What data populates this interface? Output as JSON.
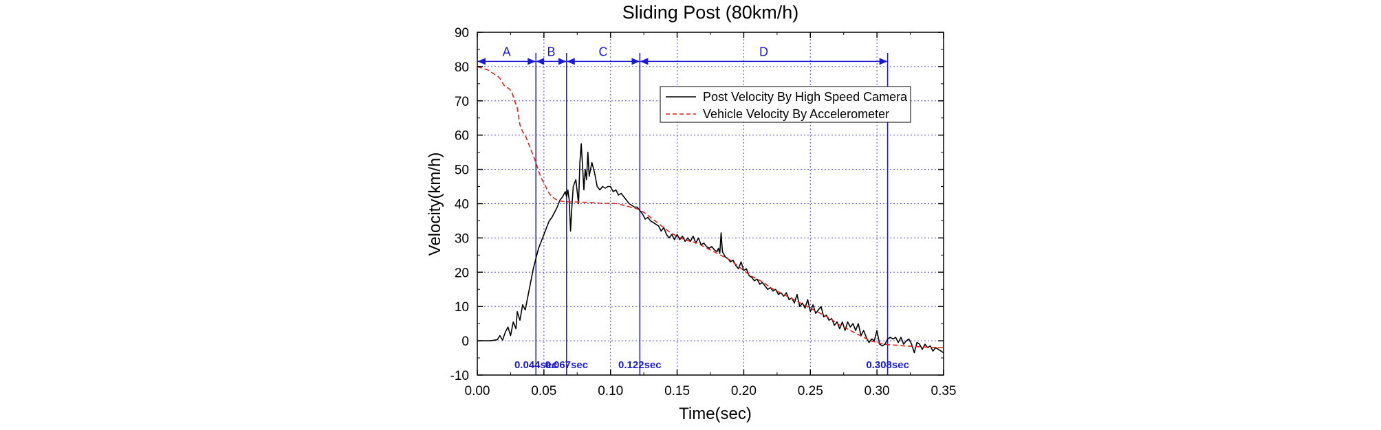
{
  "chart_data": {
    "type": "line",
    "title": "Sliding Post (80km/h)",
    "xlabel": "Time(sec)",
    "ylabel": "Velocity(km/h)",
    "xlim": [
      0,
      0.35
    ],
    "ylim": [
      -10,
      90
    ],
    "x_ticks": [
      "0.00",
      "0.05",
      "0.10",
      "0.15",
      "0.20",
      "0.25",
      "0.30",
      "0.35"
    ],
    "y_ticks": [
      "-10",
      "0",
      "10",
      "20",
      "30",
      "40",
      "50",
      "60",
      "70",
      "80",
      "90"
    ],
    "grid": true,
    "legend_position": "top-right",
    "series": [
      {
        "name": "Post Velocity By High Speed Camera",
        "color": "#000000",
        "style": "solid",
        "points": [
          [
            0.0,
            0
          ],
          [
            0.005,
            0
          ],
          [
            0.01,
            0
          ],
          [
            0.015,
            0.3
          ],
          [
            0.017,
            1.5
          ],
          [
            0.019,
            0.2
          ],
          [
            0.021,
            2.5
          ],
          [
            0.023,
            4
          ],
          [
            0.025,
            1.5
          ],
          [
            0.027,
            5.5
          ],
          [
            0.029,
            3.5
          ],
          [
            0.03,
            8.5
          ],
          [
            0.032,
            6
          ],
          [
            0.034,
            10.5
          ],
          [
            0.036,
            9
          ],
          [
            0.038,
            13
          ],
          [
            0.04,
            17
          ],
          [
            0.042,
            21
          ],
          [
            0.044,
            24
          ],
          [
            0.046,
            27
          ],
          [
            0.048,
            29
          ],
          [
            0.05,
            31
          ],
          [
            0.052,
            33
          ],
          [
            0.054,
            35
          ],
          [
            0.056,
            36
          ],
          [
            0.058,
            37.5
          ],
          [
            0.06,
            39
          ],
          [
            0.062,
            41
          ],
          [
            0.064,
            42
          ],
          [
            0.066,
            43.5
          ],
          [
            0.067,
            42
          ],
          [
            0.068,
            44
          ],
          [
            0.069,
            41
          ],
          [
            0.07,
            32
          ],
          [
            0.071,
            39
          ],
          [
            0.072,
            45
          ],
          [
            0.074,
            47
          ],
          [
            0.076,
            40
          ],
          [
            0.077,
            52
          ],
          [
            0.078,
            57.5
          ],
          [
            0.079,
            51
          ],
          [
            0.08,
            44
          ],
          [
            0.081,
            50
          ],
          [
            0.082,
            47
          ],
          [
            0.083,
            55
          ],
          [
            0.084,
            48
          ],
          [
            0.086,
            52
          ],
          [
            0.088,
            49
          ],
          [
            0.09,
            45
          ],
          [
            0.092,
            44
          ],
          [
            0.094,
            45
          ],
          [
            0.096,
            44.5
          ],
          [
            0.098,
            45
          ],
          [
            0.1,
            45
          ],
          [
            0.102,
            43.5
          ],
          [
            0.104,
            44
          ],
          [
            0.106,
            42.5
          ],
          [
            0.108,
            43
          ],
          [
            0.11,
            42
          ],
          [
            0.112,
            41
          ],
          [
            0.114,
            40
          ],
          [
            0.116,
            39.5
          ],
          [
            0.118,
            39
          ],
          [
            0.12,
            39
          ],
          [
            0.122,
            38
          ],
          [
            0.124,
            37
          ],
          [
            0.126,
            35.5
          ],
          [
            0.128,
            36
          ],
          [
            0.13,
            35
          ],
          [
            0.132,
            34.5
          ],
          [
            0.134,
            34
          ],
          [
            0.136,
            33.5
          ],
          [
            0.138,
            32
          ],
          [
            0.14,
            33
          ],
          [
            0.142,
            31
          ],
          [
            0.144,
            30
          ],
          [
            0.146,
            31
          ],
          [
            0.148,
            29.5
          ],
          [
            0.15,
            31
          ],
          [
            0.152,
            29.5
          ],
          [
            0.154,
            30.5
          ],
          [
            0.156,
            29
          ],
          [
            0.158,
            30
          ],
          [
            0.16,
            29
          ],
          [
            0.162,
            30.5
          ],
          [
            0.164,
            28.5
          ],
          [
            0.166,
            30
          ],
          [
            0.168,
            28
          ],
          [
            0.17,
            28.5
          ],
          [
            0.172,
            27.5
          ],
          [
            0.174,
            27
          ],
          [
            0.176,
            27.5
          ],
          [
            0.178,
            26.5
          ],
          [
            0.18,
            26
          ],
          [
            0.181,
            27
          ],
          [
            0.182,
            25.5
          ],
          [
            0.183,
            31.5
          ],
          [
            0.184,
            26
          ],
          [
            0.186,
            24.5
          ],
          [
            0.188,
            24
          ],
          [
            0.19,
            23
          ],
          [
            0.192,
            23.5
          ],
          [
            0.194,
            22
          ],
          [
            0.196,
            21
          ],
          [
            0.198,
            23
          ],
          [
            0.2,
            20.5
          ],
          [
            0.202,
            21
          ],
          [
            0.204,
            19
          ],
          [
            0.206,
            18.5
          ],
          [
            0.208,
            17.5
          ],
          [
            0.21,
            18
          ],
          [
            0.212,
            16.5
          ],
          [
            0.214,
            17
          ],
          [
            0.216,
            16
          ],
          [
            0.218,
            15
          ],
          [
            0.22,
            15.5
          ],
          [
            0.222,
            14.5
          ],
          [
            0.224,
            15
          ],
          [
            0.226,
            13.5
          ],
          [
            0.228,
            14
          ],
          [
            0.23,
            13
          ],
          [
            0.232,
            14
          ],
          [
            0.234,
            12
          ],
          [
            0.236,
            12.5
          ],
          [
            0.238,
            11
          ],
          [
            0.24,
            13.5
          ],
          [
            0.242,
            10
          ],
          [
            0.244,
            11
          ],
          [
            0.246,
            9.5
          ],
          [
            0.248,
            12
          ],
          [
            0.25,
            8.5
          ],
          [
            0.252,
            10.5
          ],
          [
            0.254,
            8
          ],
          [
            0.256,
            9
          ],
          [
            0.258,
            10
          ],
          [
            0.26,
            7
          ],
          [
            0.262,
            7.5
          ],
          [
            0.264,
            6
          ],
          [
            0.266,
            6.5
          ],
          [
            0.268,
            4.5
          ],
          [
            0.27,
            5.5
          ],
          [
            0.272,
            3.5
          ],
          [
            0.274,
            5.5
          ],
          [
            0.276,
            3
          ],
          [
            0.278,
            5.5
          ],
          [
            0.28,
            4
          ],
          [
            0.282,
            5
          ],
          [
            0.284,
            3
          ],
          [
            0.286,
            5
          ],
          [
            0.288,
            1.5
          ],
          [
            0.29,
            3
          ],
          [
            0.292,
            1
          ],
          [
            0.294,
            -0.5
          ],
          [
            0.296,
            0.5
          ],
          [
            0.298,
            0
          ],
          [
            0.3,
            3
          ],
          [
            0.302,
            -1
          ],
          [
            0.304,
            -1.5
          ],
          [
            0.306,
            -1
          ],
          [
            0.308,
            0.5
          ],
          [
            0.31,
            1
          ],
          [
            0.312,
            0.5
          ],
          [
            0.314,
            1
          ],
          [
            0.316,
            -0.5
          ],
          [
            0.318,
            1
          ],
          [
            0.32,
            -1
          ],
          [
            0.322,
            0
          ],
          [
            0.324,
            0.5
          ],
          [
            0.326,
            -1
          ],
          [
            0.328,
            -3.5
          ],
          [
            0.33,
            -0.5
          ],
          [
            0.332,
            -1
          ],
          [
            0.334,
            -2.5
          ],
          [
            0.336,
            -1
          ],
          [
            0.338,
            -2
          ],
          [
            0.34,
            -1.5
          ],
          [
            0.342,
            -3
          ],
          [
            0.344,
            -2
          ],
          [
            0.346,
            -2.5
          ],
          [
            0.348,
            -3
          ],
          [
            0.35,
            -3.5
          ]
        ]
      },
      {
        "name": "Vehicle Velocity By Accelerometer",
        "color": "#e0201a",
        "style": "dashed",
        "points": [
          [
            0.0,
            80
          ],
          [
            0.004,
            79.5
          ],
          [
            0.008,
            79
          ],
          [
            0.012,
            78
          ],
          [
            0.016,
            77
          ],
          [
            0.018,
            76
          ],
          [
            0.02,
            74.5
          ],
          [
            0.022,
            74
          ],
          [
            0.024,
            73.5
          ],
          [
            0.026,
            72.5
          ],
          [
            0.028,
            70
          ],
          [
            0.03,
            68
          ],
          [
            0.032,
            63
          ],
          [
            0.034,
            61
          ],
          [
            0.036,
            60
          ],
          [
            0.038,
            58
          ],
          [
            0.04,
            56
          ],
          [
            0.042,
            54
          ],
          [
            0.044,
            52
          ],
          [
            0.046,
            49.5
          ],
          [
            0.048,
            47.5
          ],
          [
            0.05,
            46
          ],
          [
            0.052,
            44.5
          ],
          [
            0.054,
            43
          ],
          [
            0.056,
            42
          ],
          [
            0.058,
            41.5
          ],
          [
            0.06,
            41
          ],
          [
            0.062,
            40.8
          ],
          [
            0.065,
            40.6
          ],
          [
            0.07,
            40.5
          ],
          [
            0.075,
            40.5
          ],
          [
            0.08,
            40.4
          ],
          [
            0.085,
            40.3
          ],
          [
            0.09,
            40.2
          ],
          [
            0.095,
            40.1
          ],
          [
            0.1,
            40.1
          ],
          [
            0.105,
            40
          ],
          [
            0.11,
            39.5
          ],
          [
            0.115,
            39
          ],
          [
            0.12,
            38.5
          ],
          [
            0.125,
            37.5
          ],
          [
            0.13,
            36
          ],
          [
            0.135,
            34.5
          ],
          [
            0.14,
            33
          ],
          [
            0.145,
            31.5
          ],
          [
            0.15,
            30.5
          ],
          [
            0.155,
            29.5
          ],
          [
            0.16,
            29
          ],
          [
            0.165,
            28.5
          ],
          [
            0.17,
            27.5
          ],
          [
            0.175,
            26.5
          ],
          [
            0.18,
            25.5
          ],
          [
            0.185,
            24.5
          ],
          [
            0.19,
            23.5
          ],
          [
            0.195,
            22
          ],
          [
            0.2,
            20.5
          ],
          [
            0.205,
            19
          ],
          [
            0.21,
            18
          ],
          [
            0.215,
            17
          ],
          [
            0.22,
            15.5
          ],
          [
            0.225,
            14.5
          ],
          [
            0.23,
            13.5
          ],
          [
            0.235,
            12.5
          ],
          [
            0.24,
            11.5
          ],
          [
            0.245,
            10.5
          ],
          [
            0.25,
            9.5
          ],
          [
            0.255,
            8.5
          ],
          [
            0.26,
            7.5
          ],
          [
            0.265,
            6.5
          ],
          [
            0.27,
            5
          ],
          [
            0.275,
            4
          ],
          [
            0.28,
            3
          ],
          [
            0.285,
            2
          ],
          [
            0.29,
            1
          ],
          [
            0.295,
            0
          ],
          [
            0.3,
            -0.5
          ],
          [
            0.305,
            -1
          ],
          [
            0.31,
            -1.2
          ],
          [
            0.315,
            -1.3
          ],
          [
            0.32,
            -1.5
          ],
          [
            0.325,
            -1.6
          ],
          [
            0.33,
            -1.7
          ],
          [
            0.335,
            -1.8
          ],
          [
            0.34,
            -1.9
          ],
          [
            0.345,
            -2
          ],
          [
            0.35,
            -2
          ]
        ]
      }
    ],
    "phase_markers": [
      {
        "x": 0.044,
        "label": "0.044sec"
      },
      {
        "x": 0.067,
        "label": "0.067sec"
      },
      {
        "x": 0.122,
        "label": "0.122sec"
      },
      {
        "x": 0.308,
        "label": "0.308sec"
      }
    ],
    "phases": [
      {
        "label": "A",
        "from": 0.0,
        "to": 0.044
      },
      {
        "label": "B",
        "from": 0.044,
        "to": 0.067
      },
      {
        "label": "C",
        "from": 0.067,
        "to": 0.122
      },
      {
        "label": "D",
        "from": 0.122,
        "to": 0.308
      }
    ],
    "phase_arrow_y": 81.5,
    "phase_color": "#1a1ad6",
    "grid_color": "#4a4ad0"
  }
}
